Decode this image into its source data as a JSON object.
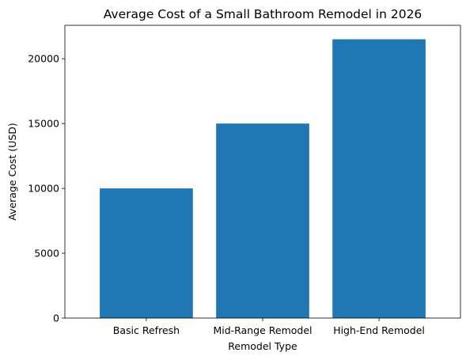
{
  "chart_data": {
    "type": "bar",
    "title": "Average Cost of a Small Bathroom Remodel in 2026",
    "xlabel": "Remodel Type",
    "ylabel": "Average Cost (USD)",
    "categories": [
      "Basic Refresh",
      "Mid-Range Remodel",
      "High-End Remodel"
    ],
    "values": [
      10000,
      15000,
      21500
    ],
    "ylim": [
      0,
      22575
    ],
    "yticks": [
      0,
      5000,
      10000,
      15000,
      20000
    ],
    "bar_color": "#1f77b4",
    "grid": false,
    "legend": "none"
  }
}
